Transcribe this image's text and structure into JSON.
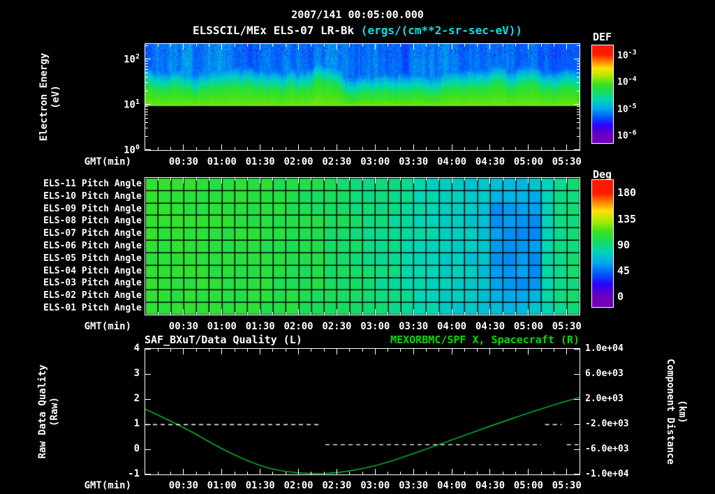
{
  "header": {
    "datetime": "2007/141 00:05:00.000",
    "title": "ELSSCIL/MEx ELS-07 LR-Bk",
    "units": " (ergs/(cm**2-sr-sec-eV))",
    "units_color": "#00e6e6"
  },
  "time_axis": {
    "label": "GMT(min)",
    "start_minute": 0,
    "end_minute": 340,
    "tick_minutes": [
      30,
      60,
      90,
      120,
      150,
      180,
      210,
      240,
      270,
      300,
      330
    ],
    "ticks": [
      "00:30",
      "01:00",
      "01:30",
      "02:00",
      "02:30",
      "03:00",
      "03:30",
      "04:00",
      "04:30",
      "05:00",
      "05:30"
    ]
  },
  "chart_data": [
    {
      "type": "heatmap",
      "name": "electron-energy-spectrogram",
      "instrument": "ELSSCIL/MEx ELS-07 LR-Bk",
      "ylabel_lines": [
        "Electron Energy",
        "(eV)"
      ],
      "y_scale": "log",
      "y_ticks": [
        "10^0",
        "10^1",
        "10^2"
      ],
      "y_top_log": 2.338,
      "energy_cutoff_ev": 10,
      "peak_logflux": -3.98,
      "floor_logflux": -5.25,
      "band_top_ev": [
        26,
        25,
        22,
        20,
        19,
        21,
        23,
        22,
        25,
        23,
        21,
        20,
        21,
        24,
        36,
        26,
        18,
        16,
        17,
        18,
        17,
        18,
        19,
        20,
        21,
        20,
        21,
        22,
        24,
        25,
        26,
        25,
        24,
        23,
        24,
        23
      ],
      "colorbar": {
        "title": "DEF",
        "ticks": [
          "10^-3",
          "10^-4",
          "10^-5",
          "10^-6"
        ],
        "log_range": [
          -6,
          -3
        ]
      }
    },
    {
      "type": "heatmap",
      "name": "pitch-angle-panels",
      "row_labels": [
        "ELS-11 Pitch Angle",
        "ELS-10 Pitch Angle",
        "ELS-09 Pitch Angle",
        "ELS-08 Pitch Angle",
        "ELS-07 Pitch Angle",
        "ELS-06 Pitch Angle",
        "ELS-05 Pitch Angle",
        "ELS-04 Pitch Angle",
        "ELS-03 Pitch Angle",
        "ELS-02 Pitch Angle",
        "ELS-01 Pitch Angle"
      ],
      "n_cols": 34,
      "columns_deg": [
        108,
        107,
        107,
        106,
        106,
        105,
        105,
        104,
        104,
        103,
        102,
        101,
        100,
        99,
        97,
        95,
        93,
        91,
        89,
        87,
        84,
        81,
        78,
        76,
        74,
        72,
        70,
        68,
        67,
        67,
        69,
        80,
        88,
        92
      ],
      "patch": {
        "row_start": 1,
        "row_end": 9,
        "col_start": 27,
        "col_end": 30,
        "deg": 55
      },
      "colorbar": {
        "title": "Deg",
        "ticks": [
          "180",
          "135",
          "90",
          "45",
          "0"
        ],
        "range": [
          0,
          180
        ]
      }
    },
    {
      "type": "line",
      "name": "data-quality-and-spacecraft-x",
      "title_left": "SAF_BXuT/Data Quality (L)",
      "title_right": "MEXORBMC/SPF X, Spacecraft (R)",
      "title_right_color": "#00dc00",
      "ylabel_left_lines": [
        "Raw Data Quality",
        "(Raw)"
      ],
      "ylabel_right_lines": [
        "Component Distance",
        "(km)"
      ],
      "y_left_range": [
        -1,
        4
      ],
      "y_left_ticks": [
        "4",
        "3",
        "2",
        "1",
        "0",
        "-1"
      ],
      "y_right_range": [
        -10000,
        10000
      ],
      "y_right_ticks": [
        "1.0e+04",
        "6.0e+03",
        "2.0e+03",
        "-2.0e+03",
        "-6.0e+03",
        "-1.0e+04"
      ],
      "series": [
        {
          "name": "MEXORBMC/SPF X Spacecraft",
          "axis": "right",
          "style": "solid",
          "color": "#00c832",
          "x_min": [
            0,
            30,
            60,
            90,
            110,
            130,
            150,
            180,
            210,
            240,
            270,
            300,
            325,
            340
          ],
          "y_km": [
            400,
            -2400,
            -6000,
            -8700,
            -9600,
            -9950,
            -9800,
            -8700,
            -6700,
            -4500,
            -2300,
            -200,
            1400,
            2300
          ]
        },
        {
          "name": "SAF_BXuT/Data Quality",
          "axis": "left",
          "style": "dashed",
          "color": "#ffffff",
          "segments": [
            {
              "x0": 0,
              "x1": 137,
              "y": 1
            },
            {
              "x0": 141,
              "x1": 310,
              "y": 0.2
            },
            {
              "x0": 313,
              "x1": 326,
              "y": 1
            },
            {
              "x0": 330,
              "x1": 340,
              "y": 0.2
            }
          ]
        }
      ]
    }
  ]
}
